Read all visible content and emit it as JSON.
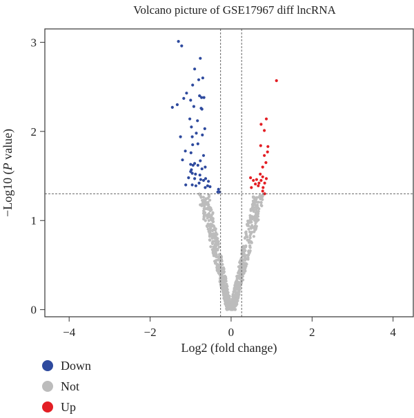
{
  "chart_data": {
    "type": "scatter",
    "title": "Volcano picture of GSE17967 diff lncRNA",
    "xlabel": "Log2 (fold change)",
    "ylabel_prefix": "−Log10 (",
    "ylabel_italic": "P",
    "ylabel_suffix": " value)",
    "xlim": [
      -4.6,
      4.5
    ],
    "ylim": [
      -0.08,
      3.15
    ],
    "xticks": [
      -4,
      -2,
      0,
      2,
      4
    ],
    "xtick_labels": [
      "−4",
      "−2",
      "0",
      "2",
      "4"
    ],
    "yticks": [
      0,
      1,
      2,
      3
    ],
    "ytick_labels": [
      "0",
      "1",
      "2",
      "3"
    ],
    "thresholds": {
      "x": [
        -0.26,
        0.26
      ],
      "y": 1.3
    },
    "grid": false,
    "legend_position": "bottom-left",
    "series": [
      {
        "name": "Down",
        "color": "#2e4a9e",
        "points": [
          [
            -1.3,
            3.01
          ],
          [
            -1.22,
            2.96
          ],
          [
            -0.76,
            2.82
          ],
          [
            -0.9,
            2.7
          ],
          [
            -0.8,
            2.58
          ],
          [
            -0.95,
            2.52
          ],
          [
            -0.7,
            2.6
          ],
          [
            -1.1,
            2.43
          ],
          [
            -0.78,
            2.4
          ],
          [
            -0.73,
            2.38
          ],
          [
            -1.0,
            2.35
          ],
          [
            -1.17,
            2.37
          ],
          [
            -0.67,
            2.38
          ],
          [
            -0.92,
            2.28
          ],
          [
            -1.45,
            2.27
          ],
          [
            -1.33,
            2.3
          ],
          [
            -0.74,
            2.26
          ],
          [
            -0.72,
            2.25
          ],
          [
            -1.02,
            2.14
          ],
          [
            -0.83,
            2.12
          ],
          [
            -0.98,
            2.05
          ],
          [
            -0.65,
            2.03
          ],
          [
            -0.86,
            1.98
          ],
          [
            -1.25,
            1.94
          ],
          [
            -0.96,
            1.94
          ],
          [
            -0.71,
            1.96
          ],
          [
            -0.82,
            1.86
          ],
          [
            -0.95,
            1.85
          ],
          [
            -0.99,
            1.76
          ],
          [
            -1.13,
            1.78
          ],
          [
            -0.68,
            1.73
          ],
          [
            -0.76,
            1.67
          ],
          [
            -1.2,
            1.68
          ],
          [
            -0.9,
            1.64
          ],
          [
            -1.0,
            1.63
          ],
          [
            -0.94,
            1.62
          ],
          [
            -0.82,
            1.62
          ],
          [
            -0.64,
            1.6
          ],
          [
            -0.72,
            1.58
          ],
          [
            -0.98,
            1.57
          ],
          [
            -1.0,
            1.55
          ],
          [
            -0.96,
            1.53
          ],
          [
            -0.88,
            1.52
          ],
          [
            -0.77,
            1.51
          ],
          [
            -1.05,
            1.48
          ],
          [
            -0.9,
            1.47
          ],
          [
            -0.75,
            1.46
          ],
          [
            -0.68,
            1.45
          ],
          [
            -0.63,
            1.47
          ],
          [
            -0.56,
            1.44
          ],
          [
            -0.79,
            1.42
          ],
          [
            -1.12,
            1.4
          ],
          [
            -0.96,
            1.4
          ],
          [
            -0.87,
            1.39
          ],
          [
            -0.58,
            1.39
          ],
          [
            -0.52,
            1.38
          ],
          [
            -0.64,
            1.37
          ],
          [
            -0.31,
            1.35
          ],
          [
            -0.33,
            1.32
          ],
          [
            -0.28,
            1.32
          ]
        ]
      },
      {
        "name": "Not",
        "color": "#bcbcbc",
        "points": []
      },
      {
        "name": "Up",
        "color": "#e31e24",
        "points": [
          [
            1.12,
            2.57
          ],
          [
            0.87,
            2.14
          ],
          [
            0.74,
            2.08
          ],
          [
            0.82,
            2.01
          ],
          [
            0.91,
            1.83
          ],
          [
            0.73,
            1.84
          ],
          [
            0.9,
            1.77
          ],
          [
            0.82,
            1.73
          ],
          [
            0.86,
            1.65
          ],
          [
            0.78,
            1.6
          ],
          [
            0.72,
            1.52
          ],
          [
            0.78,
            1.49
          ],
          [
            0.48,
            1.48
          ],
          [
            0.63,
            1.46
          ],
          [
            0.87,
            1.47
          ],
          [
            0.55,
            1.45
          ],
          [
            0.74,
            1.45
          ],
          [
            0.69,
            1.42
          ],
          [
            0.6,
            1.41
          ],
          [
            0.83,
            1.42
          ],
          [
            0.5,
            1.37
          ],
          [
            0.79,
            1.37
          ],
          [
            0.78,
            1.33
          ],
          [
            0.83,
            1.3
          ],
          [
            0.67,
            1.39
          ]
        ]
      }
    ]
  }
}
